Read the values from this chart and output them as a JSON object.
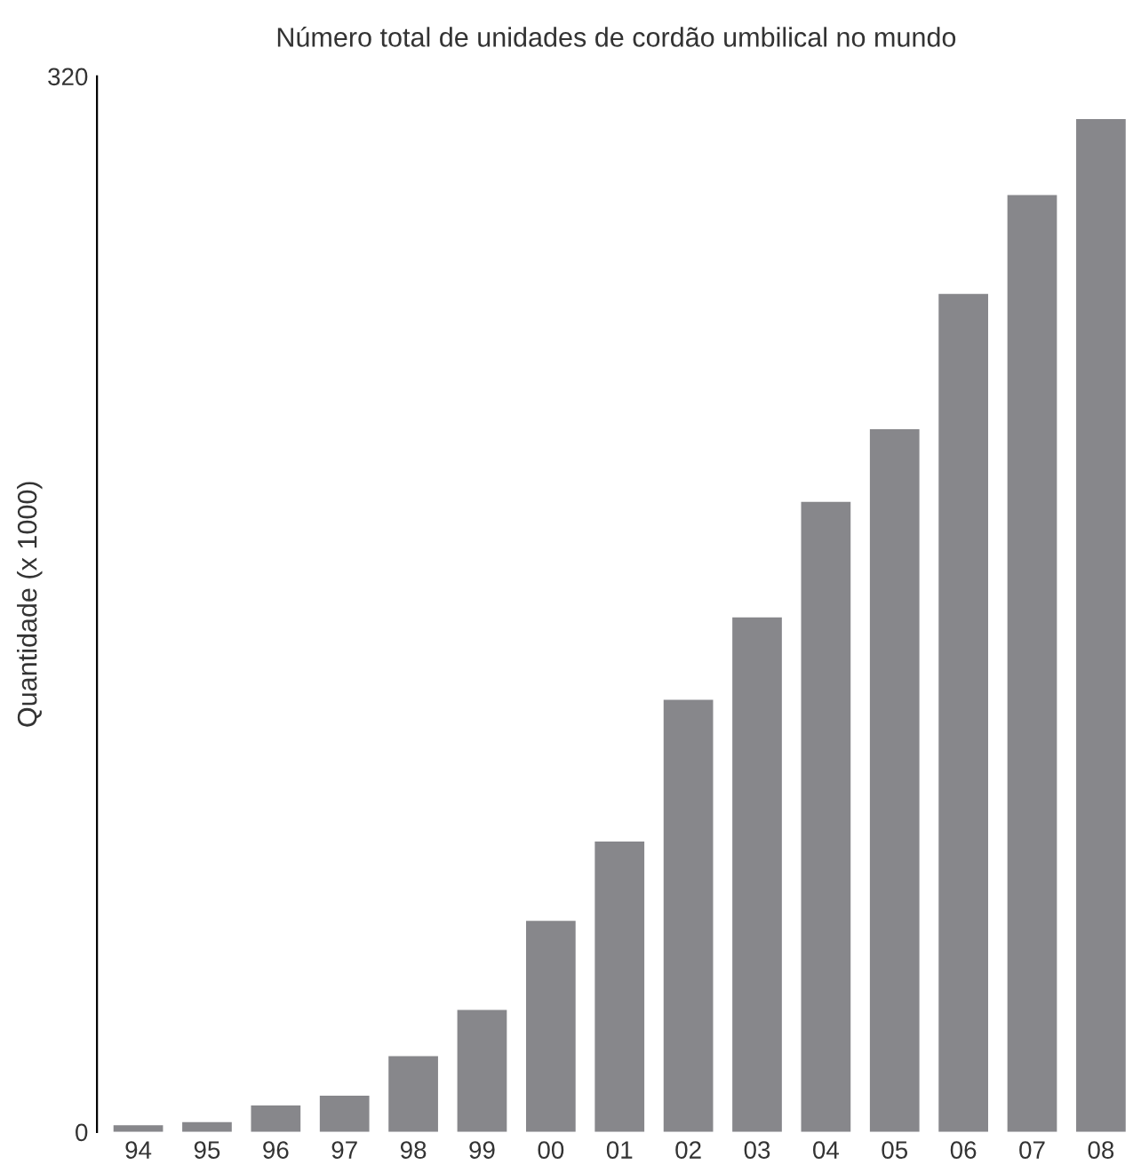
{
  "chart_data": {
    "type": "bar",
    "title": "Número total de unidades de cordão umbilical no mundo",
    "ylabel": "Quantidade (x 1000)",
    "categories": [
      "94",
      "95",
      "96",
      "97",
      "98",
      "99",
      "00",
      "01",
      "02",
      "03",
      "04",
      "05",
      "06",
      "07",
      "08"
    ],
    "values": [
      2,
      3,
      8,
      11,
      23,
      37,
      64,
      88,
      131,
      156,
      191,
      213,
      254,
      284,
      307
    ],
    "color": "#87878b",
    "ylim": [
      0,
      320
    ],
    "yticks": [
      0,
      320
    ],
    "grid": false,
    "legend": false
  }
}
